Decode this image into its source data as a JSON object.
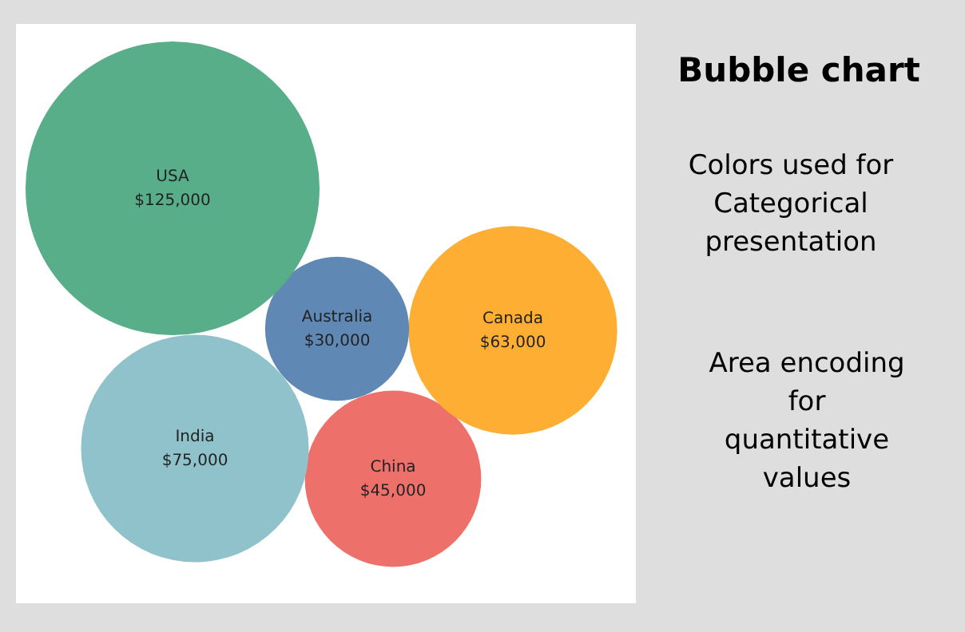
{
  "chart_data": {
    "type": "other",
    "title": "Bubble chart",
    "annotations": [
      "Colors used for\nCategorical\npresentation",
      "Area encoding\nfor\nquantitative\nvalues"
    ],
    "categories": [
      "USA",
      "Australia",
      "Canada",
      "India",
      "China"
    ],
    "values": [
      125000,
      30000,
      63000,
      75000,
      45000
    ],
    "value_labels": [
      "$125,000",
      "$30,000",
      "$63,000",
      "$75,000",
      "$45,000"
    ],
    "colors": [
      "#57ae89",
      "#5f88b5",
      "#fdae33",
      "#8fc2ca",
      "#ee706a"
    ]
  }
}
